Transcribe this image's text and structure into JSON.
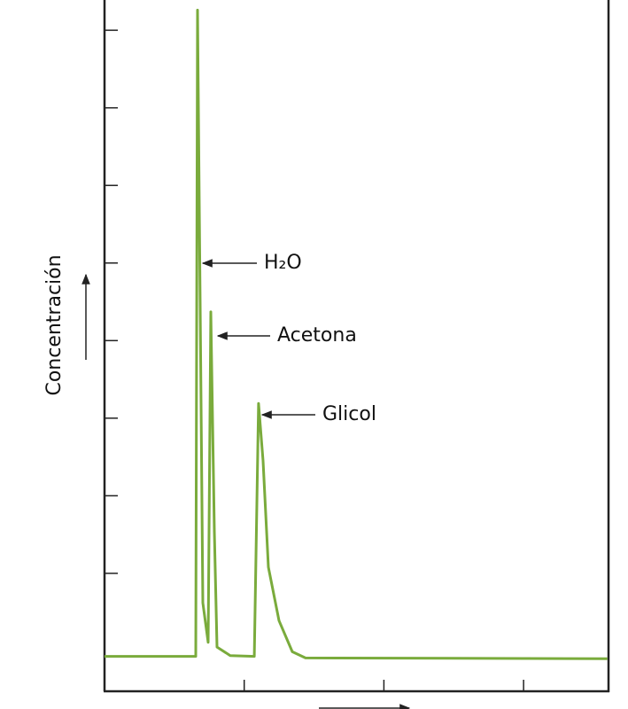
{
  "chart_data": {
    "type": "line",
    "y_label": "Concentración",
    "x": [
      0,
      0.653,
      0.666,
      0.704,
      0.742,
      0.761,
      0.786,
      0.805,
      0.9,
      1.072,
      1.103,
      1.135,
      1.173,
      1.249,
      1.344,
      1.439,
      3.6
    ],
    "series": [
      {
        "color": "#7aab3c",
        "values": [
          -0.07,
          -0.07,
          8.26,
          0.62,
          0.11,
          4.37,
          1.54,
          0.05,
          -0.06,
          -0.07,
          3.19,
          2.45,
          1.08,
          0.39,
          -0.01,
          -0.09,
          -0.1
        ]
      }
    ],
    "annotations": [
      {
        "text": "H₂O"
      },
      {
        "text": "Acetona"
      },
      {
        "text": "Glicol"
      }
    ],
    "xlim": [
      0,
      3.608
    ],
    "xticks": [
      1,
      2,
      3
    ],
    "ylim": [
      -0.52,
      8.39
    ],
    "yticks": [
      1,
      2,
      3,
      4,
      5,
      6,
      7,
      8
    ]
  }
}
